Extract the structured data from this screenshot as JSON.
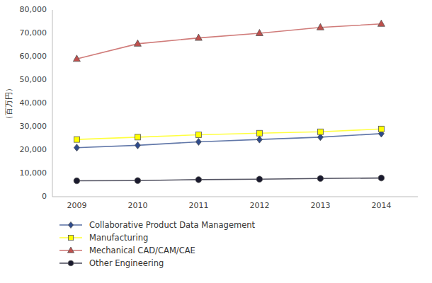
{
  "chart_data": {
    "type": "line",
    "x": [
      2009,
      2010,
      2011,
      2012,
      2013,
      2014
    ],
    "series": [
      {
        "name": "Collaborative Product Data Management",
        "color": "#2E4B8C",
        "marker": "diamond",
        "values": [
          21000,
          22000,
          23500,
          24500,
          25500,
          27000
        ]
      },
      {
        "name": "Manufacturing",
        "color": "#FFFF00",
        "marker": "square",
        "values": [
          24500,
          25500,
          26500,
          27200,
          27800,
          29000
        ]
      },
      {
        "name": "Mechanical CAD/CAM/CAE",
        "color": "#C0504D",
        "marker": "triangle",
        "values": [
          59000,
          65500,
          68000,
          70000,
          72500,
          74000
        ]
      },
      {
        "name": "Other Engineering",
        "color": "#1A1A2E",
        "marker": "circle",
        "values": [
          6800,
          6900,
          7300,
          7500,
          7800,
          8000
        ]
      }
    ],
    "y_label": "（百万円）",
    "xlim": [
      2008.6,
      2014.6
    ],
    "xticks": [
      2009,
      2010,
      2011,
      2012,
      2013,
      2014
    ],
    "ylim": [
      0,
      80000
    ],
    "yticks": [
      0,
      {
        "value": 10000,
        "label": "10,000"
      },
      {
        "value": 20000,
        "label": "20,000"
      },
      {
        "value": 30000,
        "label": "30,000"
      },
      {
        "value": 40000,
        "label": "40,000"
      },
      {
        "value": 50000,
        "label": "50,000"
      },
      {
        "value": 60000,
        "label": "60,000"
      },
      {
        "value": 70000,
        "label": "70,000"
      },
      {
        "value": 80000,
        "label": "80,000"
      }
    ],
    "grid": false,
    "legend": "bottom"
  }
}
